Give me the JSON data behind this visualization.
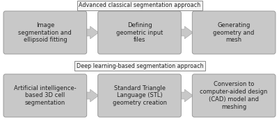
{
  "bg_color": "#ffffff",
  "box_color": "#c8c8c8",
  "box_edge_color": "#999999",
  "arrow_color": "#c8c8c8",
  "arrow_edge_color": "#aaaaaa",
  "text_color": "#222222",
  "label_facecolor": "#f5f5f5",
  "label_edgecolor": "#888888",
  "row1_label": "Advanced classical segmentation approach",
  "row2_label": "Deep learning-based segmentation approach",
  "row1_boxes": [
    "Image\nsegmentation and\nellipsoid fitting",
    "Defining\ngeometric input\nfiles",
    "Generating\ngeometry and\nmesh"
  ],
  "row2_boxes": [
    "Artificial intelligence-\nbased 3D cell\nsegmentation",
    "Standard Triangle\nLanguage (STL)\ngeometry creation",
    "Conversion to\ncomputer-aided design\n(CAD) model and\nmeshing"
  ],
  "fig_width": 4.01,
  "fig_height": 1.79,
  "dpi": 100
}
